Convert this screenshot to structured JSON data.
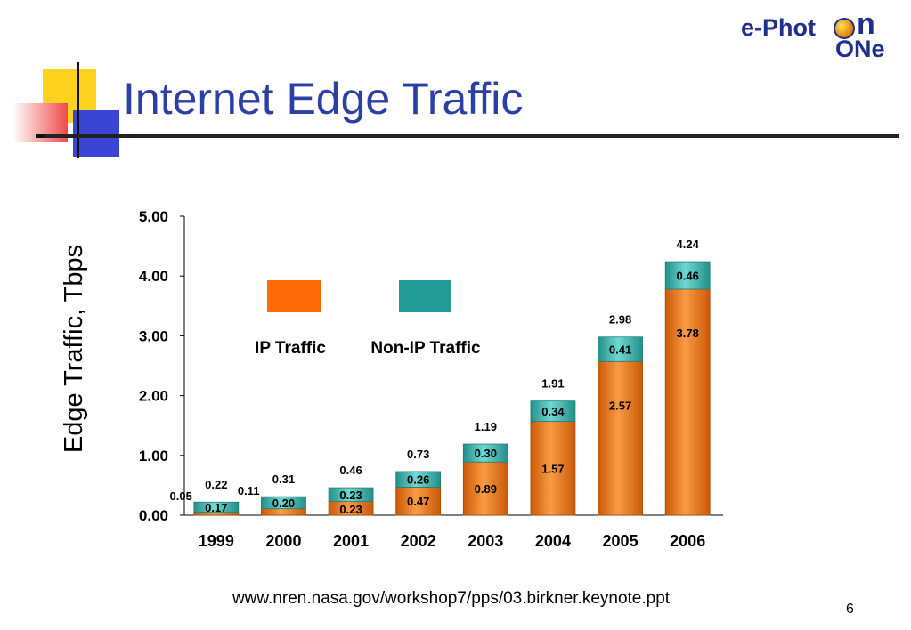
{
  "slide": {
    "title": "Internet Edge Traffic",
    "source": "www.nren.nasa.gov/workshop7/pps/03.birkner.keynote.ppt",
    "page_number": "6"
  },
  "logo": {
    "line1": "e-Phot",
    "line1_end": "n",
    "line2": "ONe"
  },
  "colors": {
    "ip": "#f07a1e",
    "non_ip": "#3fb8b2",
    "legend_ip": "#fc6a0a",
    "legend_non_ip": "#229a96",
    "title": "#2b3fa6"
  },
  "chart_data": {
    "type": "bar",
    "stacked": true,
    "ylabel": "Edge Traffic, Tbps",
    "ylim": [
      0,
      5
    ],
    "yticks": [
      "0.00",
      "1.00",
      "2.00",
      "3.00",
      "4.00",
      "5.00"
    ],
    "categories": [
      "1999",
      "2000",
      "2001",
      "2002",
      "2003",
      "2004",
      "2005",
      "2006"
    ],
    "series": [
      {
        "name": "IP Traffic",
        "values": [
          0.05,
          0.11,
          0.23,
          0.47,
          0.89,
          1.57,
          2.57,
          3.78
        ],
        "labels": [
          "0.05",
          "0.11",
          "0.23",
          "0.47",
          "0.89",
          "1.57",
          "2.57",
          "3.78"
        ]
      },
      {
        "name": "Non-IP Traffic",
        "values": [
          0.17,
          0.2,
          0.23,
          0.26,
          0.3,
          0.34,
          0.41,
          0.46
        ],
        "labels": [
          "0.17",
          "0.20",
          "0.23",
          "0.26",
          "0.30",
          "0.34",
          "0.41",
          "0.46"
        ]
      }
    ],
    "totals": [
      "0.22",
      "0.31",
      "0.46",
      "0.73",
      "1.19",
      "1.91",
      "2.98",
      "4.24"
    ],
    "legend_position": "upper-left-inside",
    "grid": false
  }
}
